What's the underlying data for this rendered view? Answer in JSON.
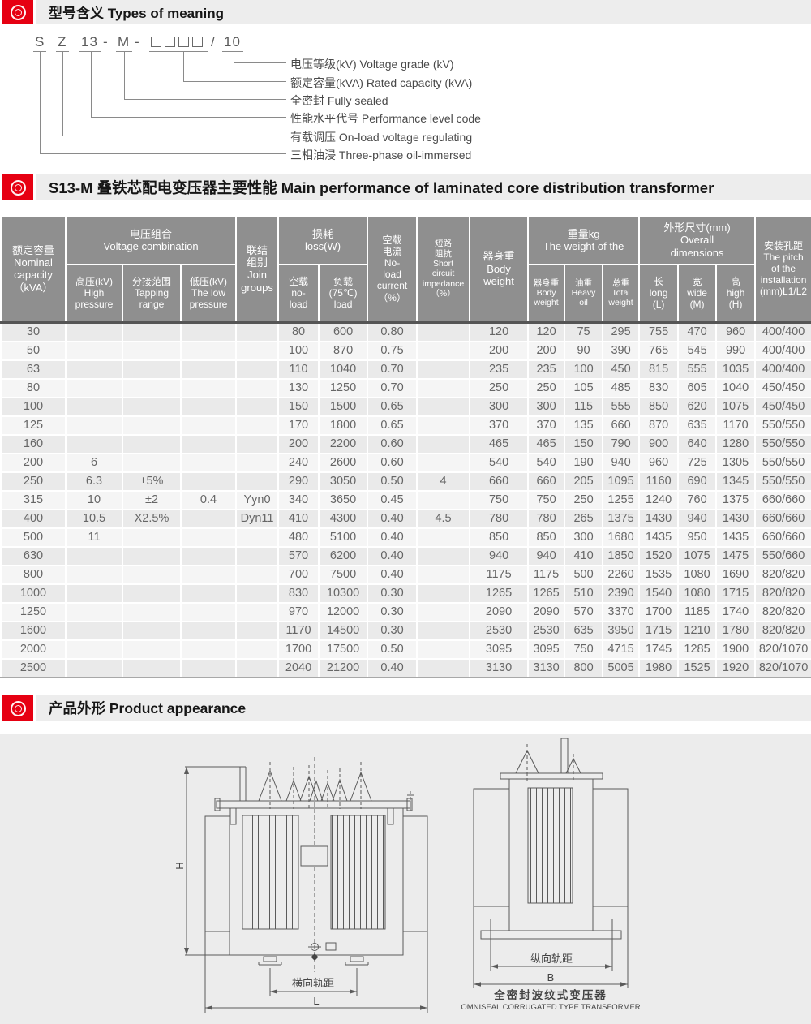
{
  "colors": {
    "accent_red": "#e60012",
    "bar_bg": "#ededed",
    "header_gray": "#8f8f8f",
    "panel_gray": "#ececec"
  },
  "sections": {
    "meaning": {
      "title": "型号含义 Types of meaning"
    },
    "performance": {
      "title": "S13-M 叠铁芯配电变压器主要性能 Main performance of laminated core distribution transformer"
    },
    "appearance": {
      "title": "产品外形 Product appearance"
    }
  },
  "model_code": {
    "s": "S",
    "z": "Z",
    "n13": "13",
    "dash1": "-",
    "m": "M",
    "dash2": "-",
    "slash": "/",
    "n10": "10",
    "labels": [
      {
        "text": "电压等级(kV) Voltage grade (kV)"
      },
      {
        "text": "额定容量(kVA) Rated capacity (kVA)"
      },
      {
        "text": "全密封 Fully sealed"
      },
      {
        "text": "性能水平代号 Performance level code"
      },
      {
        "text": "有载调压 On-load voltage regulating"
      },
      {
        "text": "三相油浸 Three-phase oil-immersed"
      }
    ]
  },
  "table": {
    "headers": {
      "capacity": "额定容量\nNominal\ncapacity\n（kVA）",
      "voltage_group": "电压组合\nVoltage combination",
      "high": "高压(kV)\nHigh\npressure",
      "tapping": "分接范围\nTapping\nrange",
      "low": "低压(kV)\nThe low\npressure",
      "join": "联结\n组别\nJoin\ngroups",
      "loss_group": "损耗\nloss(W)",
      "noload_loss": "空载\nno-\nload",
      "load_loss": "负载\n(75℃)\nload",
      "noload_current": "空载\n电流\nNo-\nload\ncurrent\n（%）",
      "impedance": "短路\n阻抗\nShort\ncircuit\nimpedance\n（%）",
      "body_weight": "器身重\nBody\nweight",
      "weight_group": "重量kg\nThe weight of the",
      "body_weight2": "器身重\nBody\nweight",
      "oil_weight": "油重\nHeavy\noil",
      "total_weight": "总重\nTotal\nweight",
      "dims_group": "外形尺寸(mm)\nOverall\ndimensions",
      "length": "长\nlong\n(L)",
      "width": "宽\nwide\n(M)",
      "height": "高\nhigh\n(H)",
      "pitch": "安装孔距\nThe pitch\nof the\ninstallation\n(mm)L1/L2"
    },
    "rows": [
      [
        "30",
        "",
        "",
        "",
        "",
        "80",
        "600",
        "0.80",
        "",
        "120",
        "120",
        "75",
        "295",
        "755",
        "470",
        "960",
        "400/400"
      ],
      [
        "50",
        "",
        "",
        "",
        "",
        "100",
        "870",
        "0.75",
        "",
        "200",
        "200",
        "90",
        "390",
        "765",
        "545",
        "990",
        "400/400"
      ],
      [
        "63",
        "",
        "",
        "",
        "",
        "110",
        "1040",
        "0.70",
        "",
        "235",
        "235",
        "100",
        "450",
        "815",
        "555",
        "1035",
        "400/400"
      ],
      [
        "80",
        "",
        "",
        "",
        "",
        "130",
        "1250",
        "0.70",
        "",
        "250",
        "250",
        "105",
        "485",
        "830",
        "605",
        "1040",
        "450/450"
      ],
      [
        "100",
        "",
        "",
        "",
        "",
        "150",
        "1500",
        "0.65",
        "",
        "300",
        "300",
        "115",
        "555",
        "850",
        "620",
        "1075",
        "450/450"
      ],
      [
        "125",
        "",
        "",
        "",
        "",
        "170",
        "1800",
        "0.65",
        "",
        "370",
        "370",
        "135",
        "660",
        "870",
        "635",
        "1170",
        "550/550"
      ],
      [
        "160",
        "",
        "",
        "",
        "",
        "200",
        "2200",
        "0.60",
        "",
        "465",
        "465",
        "150",
        "790",
        "900",
        "640",
        "1280",
        "550/550"
      ],
      [
        "200",
        "6",
        "",
        "",
        "",
        "240",
        "2600",
        "0.60",
        "",
        "540",
        "540",
        "190",
        "940",
        "960",
        "725",
        "1305",
        "550/550"
      ],
      [
        "250",
        "6.3",
        "±5%",
        "",
        "",
        "290",
        "3050",
        "0.50",
        "4",
        "660",
        "660",
        "205",
        "1095",
        "1160",
        "690",
        "1345",
        "550/550"
      ],
      [
        "315",
        "10",
        "±2",
        "0.4",
        "Yyn0",
        "340",
        "3650",
        "0.45",
        "",
        "750",
        "750",
        "250",
        "1255",
        "1240",
        "760",
        "1375",
        "660/660"
      ],
      [
        "400",
        "10.5",
        "X2.5%",
        "",
        "Dyn11",
        "410",
        "4300",
        "0.40",
        "4.5",
        "780",
        "780",
        "265",
        "1375",
        "1430",
        "940",
        "1430",
        "660/660"
      ],
      [
        "500",
        "11",
        "",
        "",
        "",
        "480",
        "5100",
        "0.40",
        "",
        "850",
        "850",
        "300",
        "1680",
        "1435",
        "950",
        "1435",
        "660/660"
      ],
      [
        "630",
        "",
        "",
        "",
        "",
        "570",
        "6200",
        "0.40",
        "",
        "940",
        "940",
        "410",
        "1850",
        "1520",
        "1075",
        "1475",
        "550/660"
      ],
      [
        "800",
        "",
        "",
        "",
        "",
        "700",
        "7500",
        "0.40",
        "",
        "1175",
        "1175",
        "500",
        "2260",
        "1535",
        "1080",
        "1690",
        "820/820"
      ],
      [
        "1000",
        "",
        "",
        "",
        "",
        "830",
        "10300",
        "0.30",
        "",
        "1265",
        "1265",
        "510",
        "2390",
        "1540",
        "1080",
        "1715",
        "820/820"
      ],
      [
        "1250",
        "",
        "",
        "",
        "",
        "970",
        "12000",
        "0.30",
        "",
        "2090",
        "2090",
        "570",
        "3370",
        "1700",
        "1185",
        "1740",
        "820/820"
      ],
      [
        "1600",
        "",
        "",
        "",
        "",
        "1170",
        "14500",
        "0.30",
        "",
        "2530",
        "2530",
        "635",
        "3950",
        "1715",
        "1210",
        "1780",
        "820/820"
      ],
      [
        "2000",
        "",
        "",
        "",
        "",
        "1700",
        "17500",
        "0.50",
        "",
        "3095",
        "3095",
        "750",
        "4715",
        "1745",
        "1285",
        "1900",
        "820/1070"
      ],
      [
        "2500",
        "",
        "",
        "",
        "",
        "2040",
        "21200",
        "0.40",
        "",
        "3130",
        "3130",
        "800",
        "5005",
        "1980",
        "1525",
        "1920",
        "820/1070"
      ]
    ]
  },
  "drawings": {
    "front_view": {
      "dim_h": "H",
      "dim_l": "L",
      "gauge_label": "横向轨距"
    },
    "side_view": {
      "dim_b": "B",
      "gauge_label": "纵向轨距",
      "caption_zh": "全密封波纹式变压器",
      "caption_en": "OMNISEAL CORRUGATED TYPE TRANSFORMER"
    }
  }
}
